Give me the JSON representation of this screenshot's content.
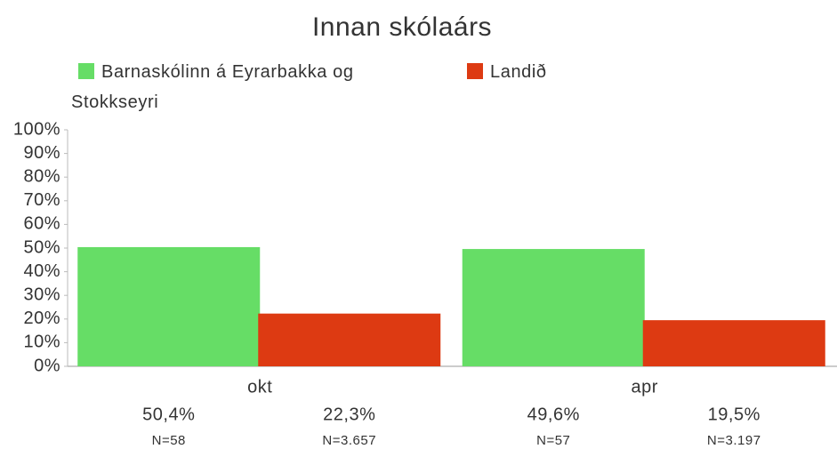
{
  "chart_data": {
    "type": "bar",
    "title": "Innan skólaárs",
    "categories": [
      "okt",
      "apr"
    ],
    "series": [
      {
        "name": "Barnaskólinn á Eyrarbakka og Stokkseyri",
        "color": "#66dd66",
        "values": [
          50.4,
          49.6
        ],
        "value_labels": [
          "50,4%",
          "49,6%"
        ],
        "n_labels": [
          "N=58",
          "N=57"
        ]
      },
      {
        "name": "Landið",
        "color": "#dd3a12",
        "values": [
          22.3,
          19.5
        ],
        "value_labels": [
          "22,3%",
          "19,5%"
        ],
        "n_labels": [
          "N=3.657",
          "N=3.197"
        ]
      }
    ],
    "ylim": [
      0,
      100
    ],
    "yticks": [
      {
        "value": 0,
        "label": "0%"
      },
      {
        "value": 10,
        "label": "10%"
      },
      {
        "value": 20,
        "label": "20%"
      },
      {
        "value": 30,
        "label": "30%"
      },
      {
        "value": 40,
        "label": "40%"
      },
      {
        "value": 50,
        "label": "50%"
      },
      {
        "value": 60,
        "label": "60%"
      },
      {
        "value": 70,
        "label": "70%"
      },
      {
        "value": 80,
        "label": "80%"
      },
      {
        "value": 90,
        "label": "90%"
      },
      {
        "value": 100,
        "label": "100%"
      }
    ],
    "legend": "top"
  }
}
